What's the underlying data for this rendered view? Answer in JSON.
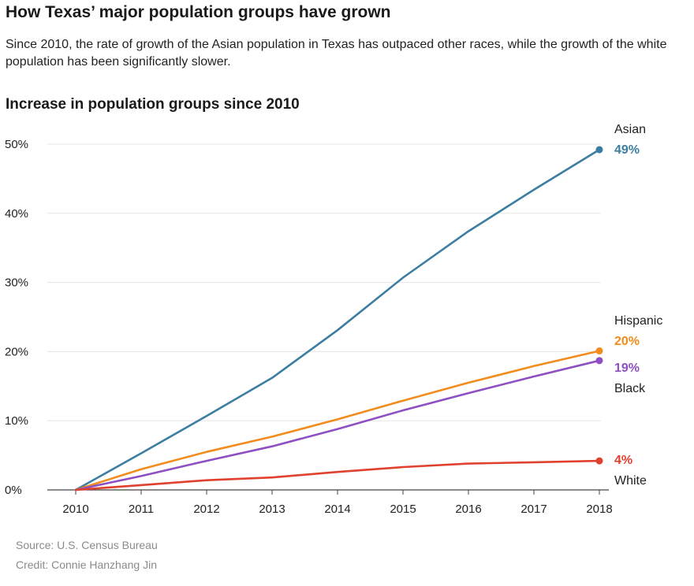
{
  "header": {
    "title": "How Texas’ major population groups have grown",
    "dek": "Since 2010, the rate of growth of the Asian population in Texas has outpaced other races, while the growth of the white population has been significantly slower."
  },
  "footer": {
    "source": "Source: U.S. Census Bureau",
    "credit": "Credit: Connie Hanzhang Jin"
  },
  "chart_data": {
    "type": "line",
    "title": "Increase in population groups since 2010",
    "x": [
      2010,
      2011,
      2012,
      2013,
      2014,
      2015,
      2016,
      2017,
      2018
    ],
    "xticks": [
      "2010",
      "2011",
      "2012",
      "2013",
      "2014",
      "2015",
      "2016",
      "2017",
      "2018"
    ],
    "ylim": [
      0,
      50
    ],
    "yticks": [
      "0%",
      "10%",
      "20%",
      "30%",
      "40%",
      "50%"
    ],
    "ytick_values": [
      0,
      10,
      20,
      30,
      40,
      50
    ],
    "grid": true,
    "legend": "direct labels at line ends",
    "series": [
      {
        "name": "Asian",
        "end_label": "49%",
        "color": "#3c7ea1",
        "values": [
          0,
          5.3,
          10.7,
          16.2,
          23.1,
          30.7,
          37.4,
          43.4,
          49.2
        ]
      },
      {
        "name": "Hispanic",
        "end_label": "20%",
        "color": "#f28c1c",
        "values": [
          0,
          3.0,
          5.5,
          7.7,
          10.2,
          12.9,
          15.5,
          17.9,
          20.1
        ]
      },
      {
        "name": "Black",
        "end_label": "19%",
        "color": "#8e4fc2",
        "values": [
          0,
          2.0,
          4.2,
          6.3,
          8.8,
          11.5,
          14.0,
          16.4,
          18.7
        ]
      },
      {
        "name": "White",
        "end_label": "4%",
        "color": "#e0402e",
        "values": [
          0,
          0.7,
          1.4,
          1.8,
          2.6,
          3.3,
          3.8,
          4.0,
          4.2
        ]
      }
    ]
  }
}
